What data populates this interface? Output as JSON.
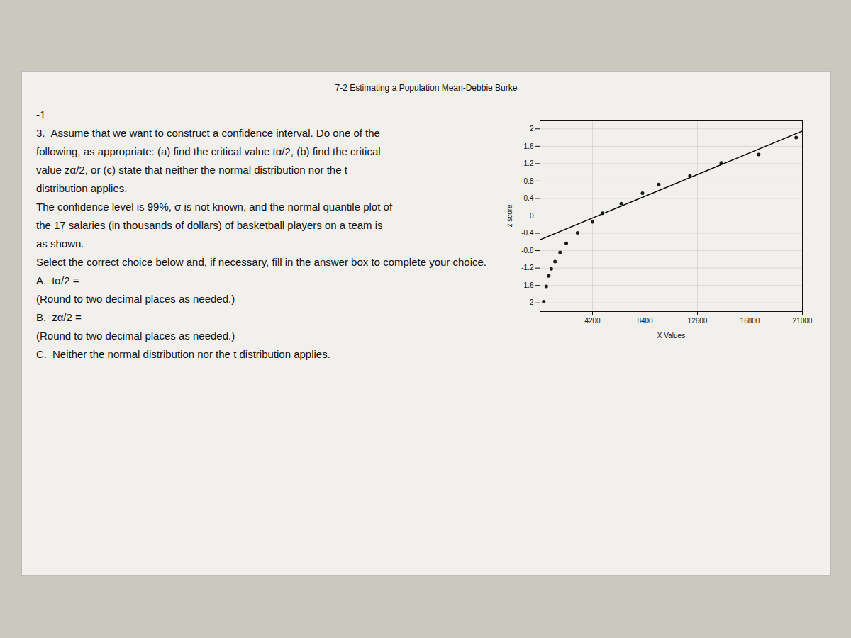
{
  "chart_data": {
    "type": "scatter",
    "title": "7-2 Estimating a Population Mean-Debbie Burke",
    "annotations": [
      [
        "-1"
      ],
      [
        "3.",
        "Assume that we want to construct a confidence interval. Do one of the"
      ],
      [
        "following, as appropriate: (a) find the critical value tα/2, (b) find the critical"
      ],
      [
        "value zα/2, or (c) state that neither the normal distribution nor the t"
      ],
      [
        "distribution applies."
      ],
      [
        "The confidence level is 99%, σ is not known, and the normal quantile plot of"
      ],
      [
        "the 17 salaries (in thousands of dollars) of basketball players on a team is"
      ],
      [
        "as shown."
      ],
      [
        "Select the correct choice below and, if necessary, fill in the answer box to complete your choice."
      ],
      [
        "A.",
        "tα/2 ="
      ],
      [
        "(Round to two decimal places as needed.)"
      ],
      [
        "B.",
        "zα/2 ="
      ],
      [
        "(Round to two decimal places as needed.)"
      ],
      [
        "C.",
        "Neither the normal distribution nor the t distribution applies."
      ]
    ],
    "xlabel": "X Values",
    "ylabel": "z score",
    "xlim": [
      0,
      21000
    ],
    "ylim": [
      -2.2,
      2.2
    ],
    "xticks": [
      4200,
      8400,
      12600,
      16800,
      21000
    ],
    "yticks": [
      -2,
      -1.6,
      -1.2,
      -0.8,
      -0.4,
      0,
      0.4,
      0.8,
      1.2,
      1.6,
      2
    ],
    "grid": true,
    "reference_y": [
      0
    ],
    "series": [
      {
        "type": "scatter",
        "color": "#1a1a1a",
        "x": [
          300,
          500,
          700,
          900,
          1200,
          1600,
          2100,
          3000,
          4200,
          5000,
          6500,
          8200,
          9500,
          12000,
          14500,
          17500,
          20500
        ],
        "values": [
          -1.97,
          -1.62,
          -1.38,
          -1.22,
          -1.05,
          -0.84,
          -0.63,
          -0.39,
          -0.14,
          0.06,
          0.28,
          0.52,
          0.72,
          0.92,
          1.22,
          1.41,
          1.8
        ]
      },
      {
        "type": "line",
        "color": "#000000",
        "x": [
          0,
          21000
        ],
        "values": [
          -0.55,
          1.95
        ]
      }
    ]
  }
}
